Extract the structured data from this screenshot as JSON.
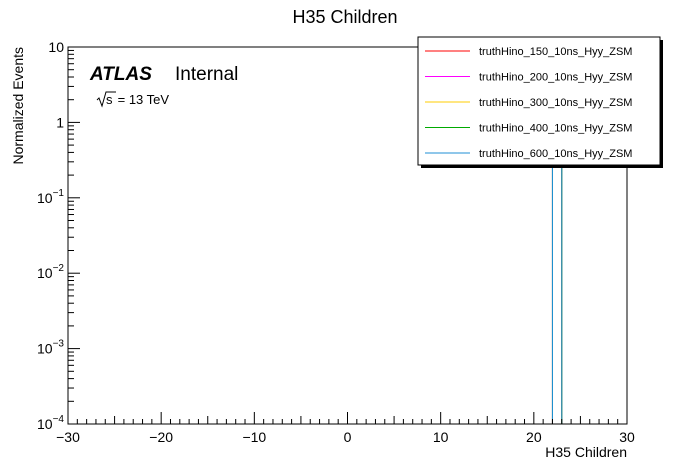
{
  "chart_data": {
    "type": "line",
    "title": "H35 Children",
    "xlabel": "H35 Children",
    "ylabel": "Normalized Events",
    "xlim": [
      -30,
      30
    ],
    "ylim": [
      0.0001,
      10
    ],
    "yscale": "log",
    "x_ticks": [
      -30,
      -20,
      -10,
      0,
      10,
      20,
      30
    ],
    "x_tick_labels": [
      "−30",
      "−20",
      "−10",
      "0",
      "10",
      "20",
      "30"
    ],
    "y_ticks": [
      0.0001,
      0.001,
      0.01,
      0.1,
      1,
      10
    ],
    "y_tick_labels": [
      {
        "base": "10",
        "exp": "−4"
      },
      {
        "base": "10",
        "exp": "−3"
      },
      {
        "base": "10",
        "exp": "−2"
      },
      {
        "base": "10",
        "exp": "−1"
      },
      {
        "base": "1",
        "exp": ""
      },
      {
        "base": "10",
        "exp": ""
      }
    ],
    "legend_position": "top-right",
    "series": [
      {
        "name": "truthHino_150_10ns_Hyy_ZSM",
        "color": "#ff0000",
        "x": [
          22,
          23
        ],
        "y": [
          1,
          0
        ]
      },
      {
        "name": "truthHino_200_10ns_Hyy_ZSM",
        "color": "#ff00ff",
        "x": [
          22,
          23
        ],
        "y": [
          1,
          0
        ]
      },
      {
        "name": "truthHino_300_10ns_Hyy_ZSM",
        "color": "#ffcc00",
        "x": [
          22,
          23
        ],
        "y": [
          1,
          0
        ]
      },
      {
        "name": "truthHino_400_10ns_Hyy_ZSM",
        "color": "#00aa00",
        "x": [
          22,
          23
        ],
        "y": [
          1,
          0
        ]
      },
      {
        "name": "truthHino_600_10ns_Hyy_ZSM",
        "color": "#1f8fd6",
        "x": [
          22,
          23
        ],
        "y": [
          1,
          0
        ]
      }
    ]
  },
  "atlas_label": {
    "experiment": "ATLAS",
    "status": "Internal",
    "energy_prefix": "s",
    "energy_suffix": " = 13 TeV"
  }
}
